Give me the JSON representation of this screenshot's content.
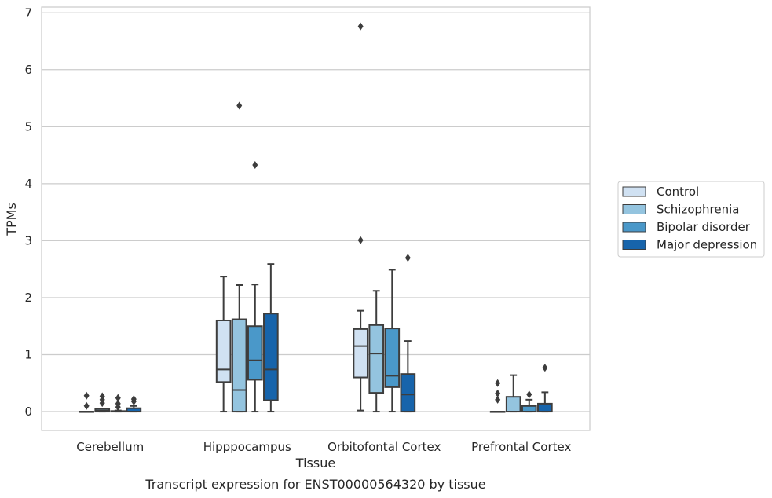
{
  "caption": "Transcript expression for ENST00000564320 by tissue",
  "chart_data": {
    "type": "box",
    "xlabel": "Tissue",
    "ylabel": "TPMs",
    "ylim": [
      -0.33,
      7.1
    ],
    "yticks": [
      0,
      1,
      2,
      3,
      4,
      5,
      6,
      7
    ],
    "grid": true,
    "legend_position": "right",
    "categories": [
      "Cerebellum",
      "Hipppocampus",
      "Orbitofontal Cortex",
      "Prefrontal Cortex"
    ],
    "series": [
      {
        "name": "Control",
        "color": "#d0e1f2",
        "boxes": [
          {
            "whisker_low": 0,
            "q1": 0,
            "median": 0,
            "q3": 0,
            "whisker_high": 0,
            "outliers": [
              0.1,
              0.28
            ]
          },
          {
            "whisker_low": 0,
            "q1": 0.52,
            "median": 0.74,
            "q3": 1.6,
            "whisker_high": 2.37,
            "outliers": []
          },
          {
            "whisker_low": 0.02,
            "q1": 0.6,
            "median": 1.15,
            "q3": 1.45,
            "whisker_high": 1.77,
            "outliers": [
              3.01,
              6.76
            ]
          },
          {
            "whisker_low": 0,
            "q1": 0,
            "median": 0,
            "q3": 0,
            "whisker_high": 0,
            "outliers": [
              0.21,
              0.32,
              0.5
            ]
          }
        ]
      },
      {
        "name": "Schizophrenia",
        "color": "#94c4df",
        "boxes": [
          {
            "whisker_low": 0,
            "q1": 0,
            "median": 0.02,
            "q3": 0.05,
            "whisker_high": 0.05,
            "outliers": [
              0.15,
              0.21,
              0.27
            ]
          },
          {
            "whisker_low": 0,
            "q1": 0,
            "median": 0.38,
            "q3": 1.62,
            "whisker_high": 2.22,
            "outliers": [
              5.37
            ]
          },
          {
            "whisker_low": 0,
            "q1": 0.33,
            "median": 1.02,
            "q3": 1.52,
            "whisker_high": 2.12,
            "outliers": []
          },
          {
            "whisker_low": 0,
            "q1": 0,
            "median": 0,
            "q3": 0.26,
            "whisker_high": 0.64,
            "outliers": []
          }
        ]
      },
      {
        "name": "Bipolar disorder",
        "color": "#4a98c9",
        "boxes": [
          {
            "whisker_low": 0,
            "q1": 0,
            "median": 0,
            "q3": 0.01,
            "whisker_high": 0.02,
            "outliers": [
              0.08,
              0.14,
              0.24
            ]
          },
          {
            "whisker_low": 0,
            "q1": 0.56,
            "median": 0.9,
            "q3": 1.5,
            "whisker_high": 2.23,
            "outliers": [
              4.33
            ]
          },
          {
            "whisker_low": 0,
            "q1": 0.43,
            "median": 0.63,
            "q3": 1.46,
            "whisker_high": 2.49,
            "outliers": []
          },
          {
            "whisker_low": 0,
            "q1": 0,
            "median": 0,
            "q3": 0.1,
            "whisker_high": 0.21,
            "outliers": [
              0.3
            ]
          }
        ]
      },
      {
        "name": "Major depression",
        "color": "#1764ab",
        "boxes": [
          {
            "whisker_low": 0,
            "q1": 0,
            "median": 0,
            "q3": 0.06,
            "whisker_high": 0.1,
            "outliers": [
              0.18,
              0.22
            ]
          },
          {
            "whisker_low": 0,
            "q1": 0.2,
            "median": 0.74,
            "q3": 1.72,
            "whisker_high": 2.59,
            "outliers": []
          },
          {
            "whisker_low": 0,
            "q1": 0,
            "median": 0.3,
            "q3": 0.66,
            "whisker_high": 1.24,
            "outliers": [
              2.7
            ]
          },
          {
            "whisker_low": 0,
            "q1": 0,
            "median": 0,
            "q3": 0.14,
            "whisker_high": 0.34,
            "outliers": [
              0.77
            ]
          }
        ]
      }
    ]
  }
}
